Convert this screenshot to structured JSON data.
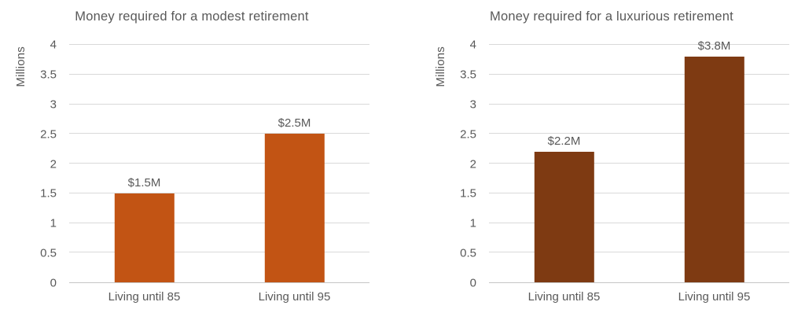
{
  "colors": {
    "background": "#ffffff",
    "text": "#595959",
    "gridline": "#d9d9d9",
    "axis_line": "#c6c6c6",
    "bar_modest": "#c25414",
    "bar_luxurious": "#7e3a12"
  },
  "chart_data": [
    {
      "type": "bar",
      "title": "Money required for a modest retirement",
      "xlabel": "",
      "ylabel": "Millions",
      "categories": [
        "Living until 85",
        "Living until 95"
      ],
      "values": [
        1.5,
        2.5
      ],
      "data_labels": [
        "$1.5M",
        "$2.5M"
      ],
      "ylim": [
        0,
        4
      ],
      "yticks": [
        0,
        0.5,
        1,
        1.5,
        2,
        2.5,
        3,
        3.5,
        4
      ],
      "grid": true,
      "legend": "none",
      "bar_color": "#c25414"
    },
    {
      "type": "bar",
      "title": "Money required for a luxurious retirement",
      "xlabel": "",
      "ylabel": "Millions",
      "categories": [
        "Living until 85",
        "Living until 95"
      ],
      "values": [
        2.2,
        3.8
      ],
      "data_labels": [
        "$2.2M",
        "$3.8M"
      ],
      "ylim": [
        0,
        4
      ],
      "yticks": [
        0,
        0.5,
        1,
        1.5,
        2,
        2.5,
        3,
        3.5,
        4
      ],
      "grid": true,
      "legend": "none",
      "bar_color": "#7e3a12"
    }
  ]
}
